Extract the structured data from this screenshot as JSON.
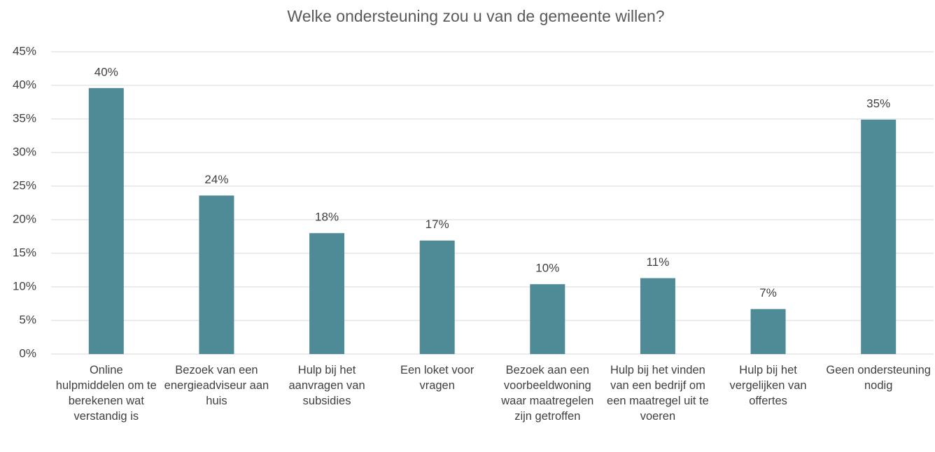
{
  "chart_data": {
    "type": "bar",
    "title": "Welke ondersteuning zou u van de gemeente willen?",
    "categories": [
      "Online hulpmiddelen om te berekenen wat verstandig is",
      "Bezoek van een energieadviseur aan huis",
      "Hulp bij het aanvragen van subsidies",
      "Een loket voor vragen",
      "Bezoek aan een voorbeeldwoning waar maatregelen zijn getroffen",
      "Hulp bij het vinden van een bedrijf om een maatregel uit te voeren",
      "Hulp bij het vergelijken van offertes",
      "Geen ondersteuning nodig"
    ],
    "values": [
      39.6,
      23.6,
      18,
      16.9,
      10.4,
      11.3,
      6.7,
      34.9
    ],
    "value_labels": [
      "40%",
      "24%",
      "18%",
      "17%",
      "10%",
      "11%",
      "7%",
      "35%"
    ],
    "color": "#4f8b97",
    "ylim": [
      0,
      45
    ],
    "yticks": [
      {
        "value": 0,
        "label": "0%"
      },
      {
        "value": 5,
        "label": "5%"
      },
      {
        "value": 10,
        "label": "10%"
      },
      {
        "value": 15,
        "label": "15%"
      },
      {
        "value": 20,
        "label": "20%"
      },
      {
        "value": 25,
        "label": "25%"
      },
      {
        "value": 30,
        "label": "30%"
      },
      {
        "value": 35,
        "label": "35%"
      },
      {
        "value": 40,
        "label": "40%"
      },
      {
        "value": 45,
        "label": "45%"
      }
    ],
    "grid": true
  }
}
